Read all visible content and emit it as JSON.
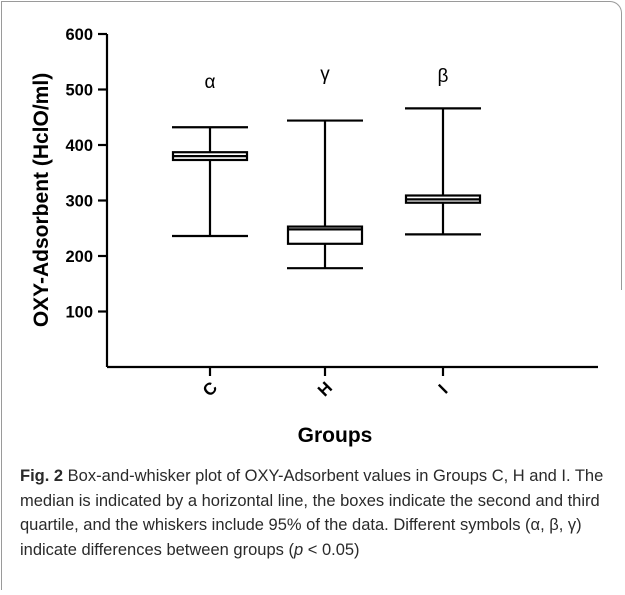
{
  "chart_data": {
    "type": "box",
    "ylabel": "OXY-Adsorbent (HclO/ml)",
    "xlabel": "Groups",
    "ylim": [
      0,
      600
    ],
    "yticks": [
      100,
      200,
      300,
      400,
      500,
      600
    ],
    "categories": [
      "C",
      "H",
      "I"
    ],
    "boxes": [
      {
        "category": "C",
        "whisker_low": 236,
        "q1": 373,
        "median": 380,
        "q3": 387,
        "whisker_high": 432,
        "annotation": "α"
      },
      {
        "category": "H",
        "whisker_low": 178,
        "q1": 222,
        "median": 248,
        "q3": 253,
        "whisker_high": 444,
        "annotation": "γ"
      },
      {
        "category": "I",
        "whisker_low": 239,
        "q1": 296,
        "median": 302,
        "q3": 309,
        "whisker_high": 466,
        "annotation": "β"
      }
    ]
  },
  "caption": {
    "label": "Fig. 2",
    "text_before_p": " Box-and-whisker plot of OXY-Adsorbent values in Groups C, H and I. The median is indicated by a horizontal line, the boxes indicate the second and third quartile, and the whiskers include 95% of the data. Different symbols (α, β, γ) indicate differences between groups (",
    "p_symbol": "p",
    "text_after_p": " < 0.05)"
  }
}
